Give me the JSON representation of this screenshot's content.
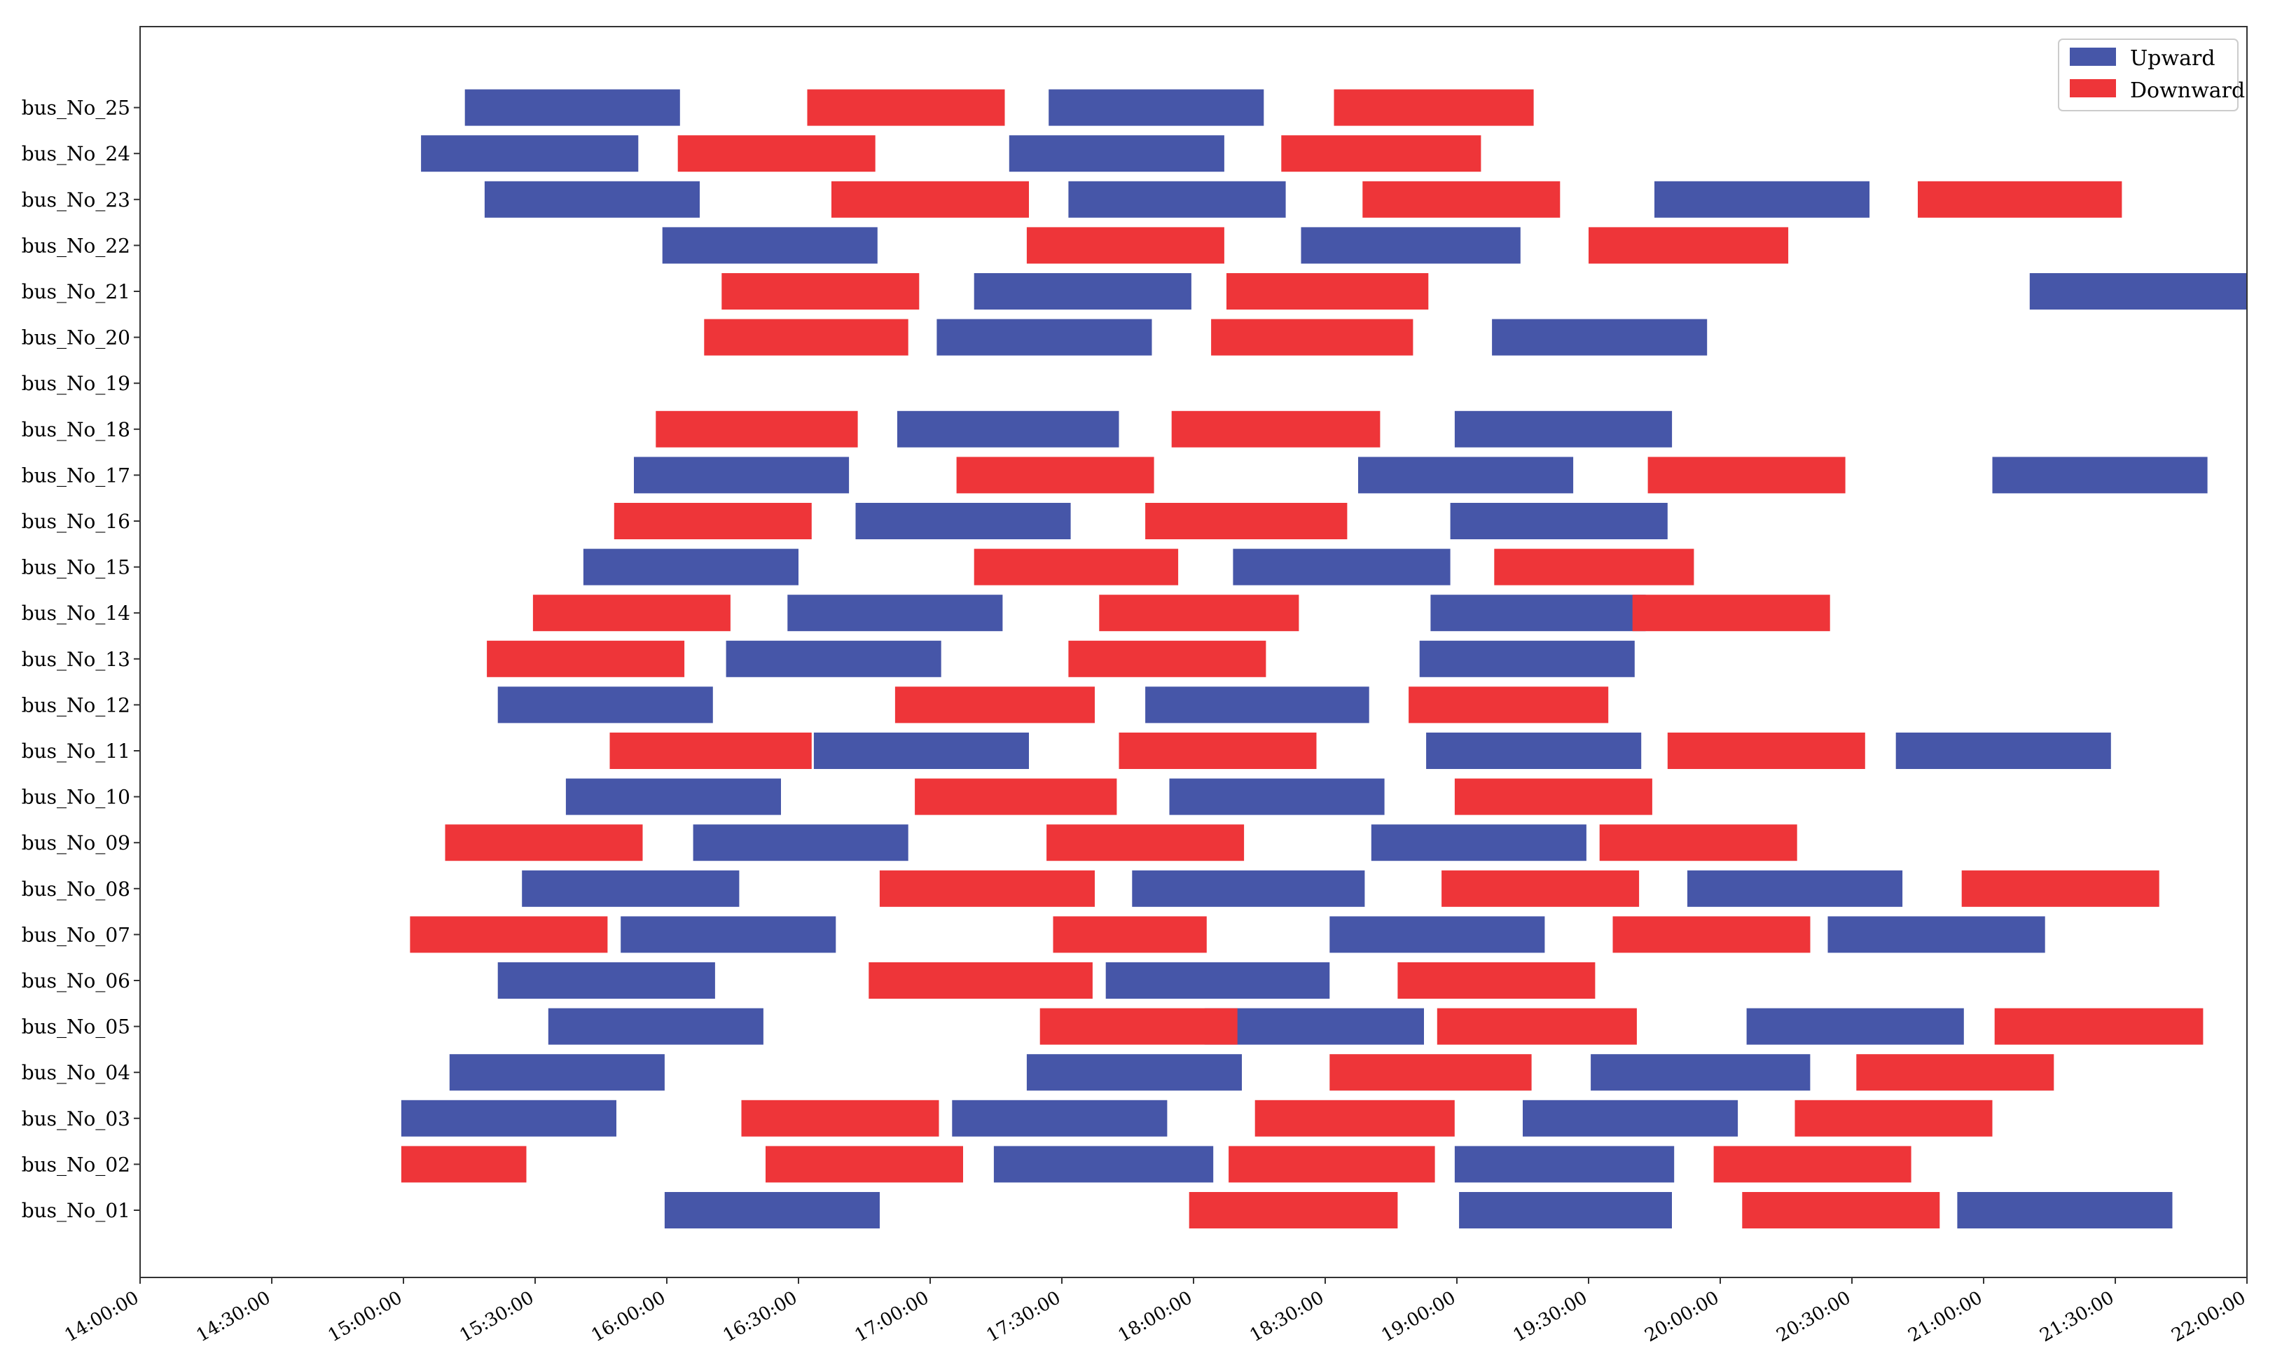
{
  "chart_data": {
    "type": "bar",
    "orientation": "horizontal-timeline",
    "title": "",
    "xlabel": "",
    "ylabel": "",
    "xlim": [
      "14:00:00",
      "22:00:00"
    ],
    "x_ticks": [
      "14:00:00",
      "14:30:00",
      "15:00:00",
      "15:30:00",
      "16:00:00",
      "16:30:00",
      "17:00:00",
      "17:30:00",
      "18:00:00",
      "18:30:00",
      "19:00:00",
      "19:30:00",
      "20:00:00",
      "20:30:00",
      "21:00:00",
      "21:30:00",
      "22:00:00"
    ],
    "categories": [
      "bus_No_01",
      "bus_No_02",
      "bus_No_03",
      "bus_No_04",
      "bus_No_05",
      "bus_No_06",
      "bus_No_07",
      "bus_No_08",
      "bus_No_09",
      "bus_No_10",
      "bus_No_11",
      "bus_No_12",
      "bus_No_13",
      "bus_No_14",
      "bus_No_15",
      "bus_No_16",
      "bus_No_17",
      "bus_No_18",
      "bus_No_19",
      "bus_No_20",
      "bus_No_21",
      "bus_No_22",
      "bus_No_23",
      "bus_No_24",
      "bus_No_25"
    ],
    "legend": {
      "position": "top-right",
      "entries": [
        "Upward",
        "Downward"
      ]
    },
    "grid": false,
    "colors": {
      "Upward": "#4656a8",
      "Downward": "#ee3539"
    },
    "series": [
      {
        "name": "Upward",
        "trips": [
          [
            "bus_No_01",
            "15:59:30",
            "16:48:30"
          ],
          [
            "bus_No_01",
            "19:00:30",
            "19:49:00"
          ],
          [
            "bus_No_01",
            "20:54:00",
            "21:43:00"
          ],
          [
            "bus_No_02",
            "17:14:30",
            "18:04:30"
          ],
          [
            "bus_No_02",
            "18:59:30",
            "19:49:30"
          ],
          [
            "bus_No_03",
            "14:59:30",
            "15:48:30"
          ],
          [
            "bus_No_03",
            "17:05:00",
            "17:54:00"
          ],
          [
            "bus_No_03",
            "19:15:00",
            "20:04:00"
          ],
          [
            "bus_No_04",
            "15:10:30",
            "15:59:30"
          ],
          [
            "bus_No_04",
            "17:22:00",
            "18:11:00"
          ],
          [
            "bus_No_04",
            "19:30:30",
            "20:20:30"
          ],
          [
            "bus_No_05",
            "15:33:00",
            "16:22:00"
          ],
          [
            "bus_No_05",
            "18:02:30",
            "18:52:30"
          ],
          [
            "bus_No_05",
            "20:06:00",
            "20:55:30"
          ],
          [
            "bus_No_06",
            "15:21:30",
            "16:11:00"
          ],
          [
            "bus_No_06",
            "17:40:00",
            "18:31:00"
          ],
          [
            "bus_No_07",
            "15:49:30",
            "16:38:30"
          ],
          [
            "bus_No_07",
            "18:31:00",
            "19:20:00"
          ],
          [
            "bus_No_07",
            "20:24:30",
            "21:14:00"
          ],
          [
            "bus_No_08",
            "15:27:00",
            "16:16:30"
          ],
          [
            "bus_No_08",
            "17:46:00",
            "18:39:00"
          ],
          [
            "bus_No_08",
            "19:52:30",
            "20:41:30"
          ],
          [
            "bus_No_09",
            "16:06:00",
            "16:55:00"
          ],
          [
            "bus_No_09",
            "18:40:30",
            "19:29:30"
          ],
          [
            "bus_No_10",
            "15:37:00",
            "16:26:00"
          ],
          [
            "bus_No_10",
            "17:54:30",
            "18:43:30"
          ],
          [
            "bus_No_11",
            "16:33:30",
            "17:22:30"
          ],
          [
            "bus_No_11",
            "18:53:00",
            "19:42:00"
          ],
          [
            "bus_No_11",
            "20:40:00",
            "21:29:00"
          ],
          [
            "bus_No_12",
            "15:21:30",
            "16:10:30"
          ],
          [
            "bus_No_12",
            "17:49:00",
            "18:40:00"
          ],
          [
            "bus_No_13",
            "16:13:30",
            "17:02:30"
          ],
          [
            "bus_No_13",
            "18:51:30",
            "19:40:30"
          ],
          [
            "bus_No_14",
            "16:27:30",
            "17:16:30"
          ],
          [
            "bus_No_14",
            "18:54:00",
            "19:43:00"
          ],
          [
            "bus_No_15",
            "15:41:00",
            "16:30:00"
          ],
          [
            "bus_No_15",
            "18:09:00",
            "18:58:30"
          ],
          [
            "bus_No_16",
            "16:43:00",
            "17:32:00"
          ],
          [
            "bus_No_16",
            "18:58:30",
            "19:48:00"
          ],
          [
            "bus_No_17",
            "15:52:30",
            "16:41:30"
          ],
          [
            "bus_No_17",
            "18:37:30",
            "19:26:30"
          ],
          [
            "bus_No_17",
            "21:02:00",
            "21:51:00"
          ],
          [
            "bus_No_18",
            "16:52:30",
            "17:43:00"
          ],
          [
            "bus_No_18",
            "18:59:30",
            "19:49:00"
          ],
          [
            "bus_No_20",
            "17:01:30",
            "17:50:30"
          ],
          [
            "bus_No_20",
            "19:08:00",
            "19:57:00"
          ],
          [
            "bus_No_21",
            "17:10:00",
            "17:59:30"
          ],
          [
            "bus_No_21",
            "21:10:30",
            "22:00:00"
          ],
          [
            "bus_No_22",
            "15:59:00",
            "16:48:00"
          ],
          [
            "bus_No_22",
            "18:24:30",
            "19:14:30"
          ],
          [
            "bus_No_23",
            "15:18:30",
            "16:07:30"
          ],
          [
            "bus_No_23",
            "17:31:30",
            "18:21:00"
          ],
          [
            "bus_No_23",
            "19:45:00",
            "20:34:00"
          ],
          [
            "bus_No_24",
            "15:04:00",
            "15:53:30"
          ],
          [
            "bus_No_24",
            "17:18:00",
            "18:07:00"
          ],
          [
            "bus_No_25",
            "15:14:00",
            "16:03:00"
          ],
          [
            "bus_No_25",
            "17:27:00",
            "18:16:00"
          ]
        ]
      },
      {
        "name": "Downward",
        "trips": [
          [
            "bus_No_01",
            "17:59:00",
            "18:46:30"
          ],
          [
            "bus_No_01",
            "20:05:00",
            "20:50:00"
          ],
          [
            "bus_No_02",
            "14:59:30",
            "15:28:00"
          ],
          [
            "bus_No_02",
            "16:22:30",
            "17:07:30"
          ],
          [
            "bus_No_02",
            "18:08:00",
            "18:55:00"
          ],
          [
            "bus_No_02",
            "19:58:30",
            "20:43:30"
          ],
          [
            "bus_No_03",
            "16:17:00",
            "17:02:00"
          ],
          [
            "bus_No_03",
            "18:14:00",
            "18:59:30"
          ],
          [
            "bus_No_03",
            "20:17:00",
            "21:02:00"
          ],
          [
            "bus_No_04",
            "18:31:00",
            "19:17:00"
          ],
          [
            "bus_No_04",
            "20:31:00",
            "21:16:00"
          ],
          [
            "bus_No_05",
            "17:25:00",
            "18:10:00"
          ],
          [
            "bus_No_05",
            "18:55:30",
            "19:41:00"
          ],
          [
            "bus_No_05",
            "21:02:30",
            "21:50:00"
          ],
          [
            "bus_No_06",
            "16:46:00",
            "17:37:00"
          ],
          [
            "bus_No_06",
            "18:46:30",
            "19:31:30"
          ],
          [
            "bus_No_07",
            "15:01:30",
            "15:46:30"
          ],
          [
            "bus_No_07",
            "17:28:00",
            "18:03:00"
          ],
          [
            "bus_No_07",
            "19:35:30",
            "20:20:30"
          ],
          [
            "bus_No_08",
            "16:48:30",
            "17:37:30"
          ],
          [
            "bus_No_08",
            "18:56:30",
            "19:41:30"
          ],
          [
            "bus_No_08",
            "20:55:00",
            "21:40:00"
          ],
          [
            "bus_No_09",
            "15:09:30",
            "15:54:30"
          ],
          [
            "bus_No_09",
            "17:26:30",
            "18:11:30"
          ],
          [
            "bus_No_09",
            "19:32:30",
            "20:17:30"
          ],
          [
            "bus_No_10",
            "16:56:30",
            "17:42:30"
          ],
          [
            "bus_No_10",
            "18:59:30",
            "19:44:30"
          ],
          [
            "bus_No_11",
            "15:47:00",
            "16:33:00"
          ],
          [
            "bus_No_11",
            "17:43:00",
            "18:28:00"
          ],
          [
            "bus_No_11",
            "19:48:00",
            "20:33:00"
          ],
          [
            "bus_No_12",
            "16:52:00",
            "17:37:30"
          ],
          [
            "bus_No_12",
            "18:49:00",
            "19:34:30"
          ],
          [
            "bus_No_13",
            "15:19:00",
            "16:04:00"
          ],
          [
            "bus_No_13",
            "17:31:30",
            "18:16:30"
          ],
          [
            "bus_No_14",
            "15:29:30",
            "16:14:30"
          ],
          [
            "bus_No_14",
            "17:38:30",
            "18:24:00"
          ],
          [
            "bus_No_14",
            "19:40:00",
            "20:25:00"
          ],
          [
            "bus_No_15",
            "17:10:00",
            "17:56:30"
          ],
          [
            "bus_No_15",
            "19:08:30",
            "19:54:00"
          ],
          [
            "bus_No_16",
            "15:48:00",
            "16:33:00"
          ],
          [
            "bus_No_16",
            "17:49:00",
            "18:35:00"
          ],
          [
            "bus_No_17",
            "17:06:00",
            "17:51:00"
          ],
          [
            "bus_No_17",
            "19:43:30",
            "20:28:30"
          ],
          [
            "bus_No_18",
            "15:57:30",
            "16:43:30"
          ],
          [
            "bus_No_18",
            "17:55:00",
            "18:42:30"
          ],
          [
            "bus_No_20",
            "16:08:30",
            "16:55:00"
          ],
          [
            "bus_No_20",
            "18:04:00",
            "18:50:00"
          ],
          [
            "bus_No_21",
            "16:12:30",
            "16:57:30"
          ],
          [
            "bus_No_21",
            "18:07:30",
            "18:53:30"
          ],
          [
            "bus_No_22",
            "17:22:00",
            "18:07:00"
          ],
          [
            "bus_No_22",
            "19:30:00",
            "20:15:30"
          ],
          [
            "bus_No_23",
            "16:37:30",
            "17:22:30"
          ],
          [
            "bus_No_23",
            "18:38:30",
            "19:23:30"
          ],
          [
            "bus_No_23",
            "20:45:00",
            "21:31:30"
          ],
          [
            "bus_No_24",
            "16:02:30",
            "16:47:30"
          ],
          [
            "bus_No_24",
            "18:20:00",
            "19:05:30"
          ],
          [
            "bus_No_25",
            "16:32:00",
            "17:17:00"
          ],
          [
            "bus_No_25",
            "18:32:00",
            "19:17:30"
          ]
        ]
      }
    ]
  }
}
